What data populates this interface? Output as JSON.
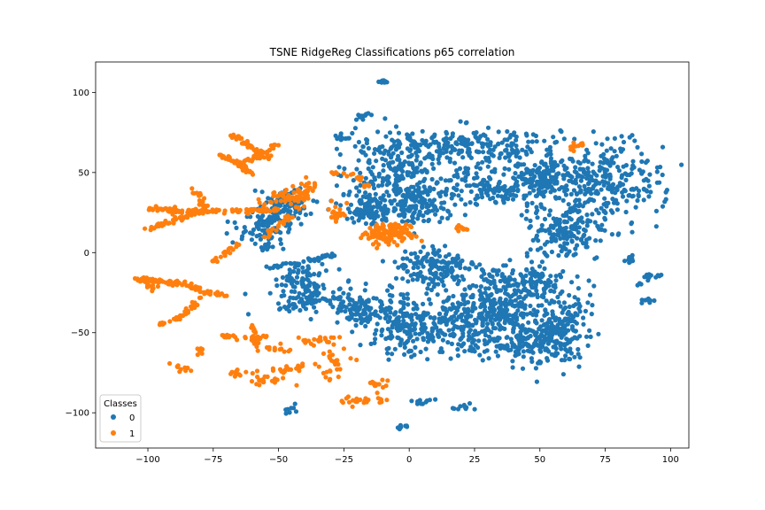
{
  "chart_data": {
    "type": "scatter",
    "title": "TSNE RidgeReg Classifications p65 correlation",
    "xlabel": "",
    "ylabel": "",
    "xlim": [
      -120,
      107
    ],
    "ylim": [
      -122,
      119
    ],
    "xticks": [
      -100,
      -75,
      -50,
      -25,
      0,
      25,
      50,
      75,
      100
    ],
    "yticks": [
      -100,
      -50,
      0,
      50,
      100
    ],
    "xtick_labels": [
      "−100",
      "−75",
      "−50",
      "−25",
      "0",
      "25",
      "50",
      "75",
      "100"
    ],
    "ytick_labels": [
      "−100",
      "−50",
      "0",
      "50",
      "100"
    ],
    "grid": false,
    "legend": {
      "title": "Classes",
      "placement": "lower-left"
    },
    "series": [
      {
        "name": "0",
        "color": "#1f77b4",
        "clusters": [
          {
            "type": "blob",
            "cx": 22,
            "cy": 67,
            "rx": 32,
            "ry": 10,
            "n": 230
          },
          {
            "type": "blob",
            "cx": -5,
            "cy": 52,
            "rx": 16,
            "ry": 22,
            "n": 200
          },
          {
            "type": "blob",
            "cx": -15,
            "cy": 27,
            "rx": 10,
            "ry": 9,
            "n": 120
          },
          {
            "type": "blob",
            "cx": 3,
            "cy": 30,
            "rx": 10,
            "ry": 10,
            "n": 120
          },
          {
            "type": "blob",
            "cx": 32,
            "cy": 42,
            "rx": 20,
            "ry": 12,
            "n": 170
          },
          {
            "type": "blob",
            "cx": 52,
            "cy": 48,
            "rx": 10,
            "ry": 10,
            "n": 100
          },
          {
            "type": "blob",
            "cx": 73,
            "cy": 44,
            "rx": 22,
            "ry": 22,
            "n": 300
          },
          {
            "type": "blob",
            "cx": 60,
            "cy": 12,
            "rx": 14,
            "ry": 16,
            "n": 170
          },
          {
            "type": "blob",
            "cx": -40,
            "cy": -20,
            "rx": 10,
            "ry": 12,
            "n": 110
          },
          {
            "type": "blob",
            "cx": -55,
            "cy": 15,
            "rx": 10,
            "ry": 12,
            "n": 100
          },
          {
            "type": "blob",
            "cx": -47,
            "cy": 30,
            "rx": 8,
            "ry": 10,
            "n": 80
          },
          {
            "type": "blob",
            "cx": -20,
            "cy": -35,
            "rx": 10,
            "ry": 12,
            "n": 100
          },
          {
            "type": "blob",
            "cx": 10,
            "cy": -10,
            "rx": 16,
            "ry": 12,
            "n": 150
          },
          {
            "type": "blob",
            "cx": 40,
            "cy": -20,
            "rx": 20,
            "ry": 10,
            "n": 170
          },
          {
            "type": "blob",
            "cx": -2,
            "cy": -45,
            "rx": 12,
            "ry": 18,
            "n": 160
          },
          {
            "type": "blob",
            "cx": 20,
            "cy": -45,
            "rx": 18,
            "ry": 16,
            "n": 220
          },
          {
            "type": "blob",
            "cx": 45,
            "cy": -55,
            "rx": 14,
            "ry": 14,
            "n": 170
          },
          {
            "type": "blob",
            "cx": 58,
            "cy": -45,
            "rx": 10,
            "ry": 22,
            "n": 160
          },
          {
            "type": "blob",
            "cx": 35,
            "cy": -35,
            "rx": 12,
            "ry": 10,
            "n": 120
          },
          {
            "type": "blob",
            "cx": -10,
            "cy": 107,
            "rx": 1.5,
            "ry": 1.2,
            "n": 10
          },
          {
            "type": "blob",
            "cx": -18,
            "cy": 85,
            "rx": 2,
            "ry": 2.5,
            "n": 10
          },
          {
            "type": "blob",
            "cx": -25,
            "cy": 72,
            "rx": 3,
            "ry": 2,
            "n": 10
          },
          {
            "type": "blob",
            "cx": 84,
            "cy": -5,
            "rx": 2,
            "ry": 2,
            "n": 10
          },
          {
            "type": "blob",
            "cx": 92,
            "cy": -15,
            "rx": 4,
            "ry": 2,
            "n": 12
          },
          {
            "type": "blob",
            "cx": 91,
            "cy": -30,
            "rx": 2,
            "ry": 2,
            "n": 10
          },
          {
            "type": "blob",
            "cx": 88,
            "cy": -20,
            "rx": 1,
            "ry": 1,
            "n": 3
          },
          {
            "type": "blob",
            "cx": 7,
            "cy": -93,
            "rx": 4,
            "ry": 2,
            "n": 10
          },
          {
            "type": "blob",
            "cx": 20,
            "cy": -96,
            "rx": 5,
            "ry": 2,
            "n": 10
          },
          {
            "type": "blob",
            "cx": -47,
            "cy": -98,
            "rx": 3,
            "ry": 3,
            "n": 8
          },
          {
            "type": "blob",
            "cx": -3,
            "cy": -109,
            "rx": 2,
            "ry": 2,
            "n": 8
          },
          {
            "type": "line",
            "x": [
              -55,
              -40,
              -28
            ],
            "y": [
              -10,
              -5,
              -2
            ],
            "n": 40
          },
          {
            "type": "line",
            "x": [
              -50,
              -35,
              -25
            ],
            "y": [
              -35,
              -30,
              -28
            ],
            "n": 30
          }
        ]
      },
      {
        "name": "1",
        "color": "#ff7f0e",
        "clusters": [
          {
            "type": "line",
            "x": [
              -73,
              -65,
              -59
            ],
            "y": [
              62,
              55,
              48
            ],
            "n": 40
          },
          {
            "type": "line",
            "x": [
              -66,
              -58,
              -50
            ],
            "y": [
              55,
              60,
              68
            ],
            "n": 40
          },
          {
            "type": "line",
            "x": [
              -69,
              -60,
              -53
            ],
            "y": [
              75,
              65,
              58
            ],
            "n": 35
          },
          {
            "type": "line",
            "x": [
              -100,
              -90,
              -78
            ],
            "y": [
              28,
              26,
              26
            ],
            "n": 60
          },
          {
            "type": "line",
            "x": [
              -78,
              -62,
              -50
            ],
            "y": [
              26,
              26,
              27
            ],
            "n": 60
          },
          {
            "type": "line",
            "x": [
              -100,
              -90,
              -80
            ],
            "y": [
              15,
              20,
              26
            ],
            "n": 45
          },
          {
            "type": "line",
            "x": [
              -85,
              -80,
              -78
            ],
            "y": [
              40,
              35,
              26
            ],
            "n": 25
          },
          {
            "type": "line",
            "x": [
              -105,
              -95,
              -85
            ],
            "y": [
              -17,
              -18,
              -20
            ],
            "n": 60
          },
          {
            "type": "line",
            "x": [
              -85,
              -78,
              -70
            ],
            "y": [
              -20,
              -25,
              -27
            ],
            "n": 35
          },
          {
            "type": "line",
            "x": [
              -95,
              -85,
              -80
            ],
            "y": [
              -45,
              -38,
              -28
            ],
            "n": 35
          },
          {
            "type": "line",
            "x": [
              -72,
              -60,
              -55
            ],
            "y": [
              -52,
              -54,
              -52
            ],
            "n": 35
          },
          {
            "type": "line",
            "x": [
              -60,
              -59,
              -58
            ],
            "y": [
              -45,
              -55,
              -60
            ],
            "n": 20
          },
          {
            "type": "line",
            "x": [
              -75,
              -70,
              -65
            ],
            "y": [
              -5,
              0,
              5
            ],
            "n": 20
          },
          {
            "type": "line",
            "x": [
              -55,
              -48,
              -40
            ],
            "y": [
              10,
              20,
              30
            ],
            "n": 25
          },
          {
            "type": "line",
            "x": [
              -30,
              -20,
              -15
            ],
            "y": [
              50,
              48,
              40
            ],
            "n": 20
          },
          {
            "type": "blob",
            "cx": -8,
            "cy": 12,
            "rx": 9,
            "ry": 6,
            "n": 120
          },
          {
            "type": "blob",
            "cx": -40,
            "cy": 40,
            "rx": 4,
            "ry": 6,
            "n": 30
          },
          {
            "type": "blob",
            "cx": -48,
            "cy": 35,
            "rx": 8,
            "ry": 5,
            "n": 40
          },
          {
            "type": "blob",
            "cx": 20,
            "cy": 15,
            "rx": 3,
            "ry": 2,
            "n": 12
          },
          {
            "type": "blob",
            "cx": 64,
            "cy": 67,
            "rx": 3,
            "ry": 2,
            "n": 12
          },
          {
            "type": "blob",
            "cx": -28,
            "cy": 25,
            "rx": 4,
            "ry": 5,
            "n": 20
          },
          {
            "type": "blob",
            "cx": -35,
            "cy": -55,
            "rx": 8,
            "ry": 3,
            "n": 20
          },
          {
            "type": "blob",
            "cx": -45,
            "cy": -72,
            "rx": 6,
            "ry": 3,
            "n": 20
          },
          {
            "type": "blob",
            "cx": -55,
            "cy": -80,
            "rx": 6,
            "ry": 3,
            "n": 20
          },
          {
            "type": "blob",
            "cx": -30,
            "cy": -70,
            "rx": 6,
            "ry": 8,
            "n": 25
          },
          {
            "type": "blob",
            "cx": -20,
            "cy": -92,
            "rx": 6,
            "ry": 3,
            "n": 20
          },
          {
            "type": "blob",
            "cx": -12,
            "cy": -82,
            "rx": 4,
            "ry": 2,
            "n": 12
          },
          {
            "type": "blob",
            "cx": -50,
            "cy": -60,
            "rx": 4,
            "ry": 3,
            "n": 12
          },
          {
            "type": "blob",
            "cx": -98,
            "cy": -22,
            "rx": 3,
            "ry": 3,
            "n": 8
          },
          {
            "type": "blob",
            "cx": -80,
            "cy": -62,
            "rx": 2,
            "ry": 2,
            "n": 6
          },
          {
            "type": "blob",
            "cx": -88,
            "cy": -72,
            "rx": 4,
            "ry": 3,
            "n": 10
          },
          {
            "type": "blob",
            "cx": -65,
            "cy": -75,
            "rx": 5,
            "ry": 3,
            "n": 12
          },
          {
            "type": "blob",
            "cx": -10,
            "cy": -92,
            "rx": 2,
            "ry": 2,
            "n": 6
          }
        ]
      }
    ]
  }
}
